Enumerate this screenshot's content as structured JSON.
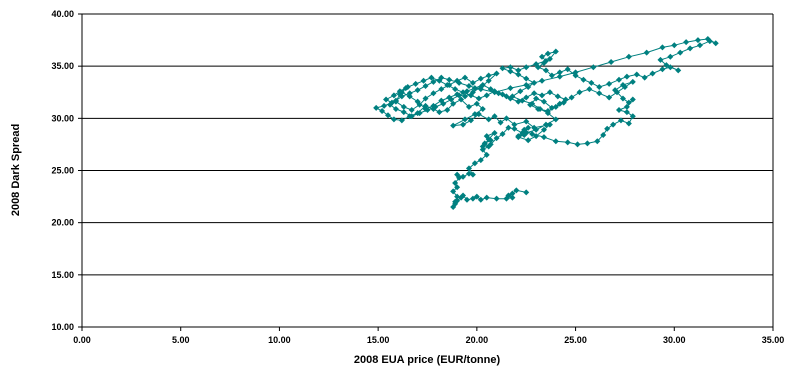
{
  "chart_data": {
    "type": "scatter",
    "title": "",
    "xlabel": "2008 EUA price (EUR/tonne)",
    "ylabel": "2008 Dark Spread",
    "xlim": [
      0,
      35
    ],
    "ylim": [
      10,
      40
    ],
    "x_ticks": [
      "0.00",
      "5.00",
      "10.00",
      "15.00",
      "20.00",
      "25.00",
      "30.00",
      "35.00"
    ],
    "y_ticks": [
      "10.00",
      "15.00",
      "20.00",
      "25.00",
      "30.00",
      "35.00",
      "40.00"
    ],
    "grid": "horizontal",
    "legend": "none",
    "color": "#008080",
    "marker": "diamond",
    "connected": true,
    "series": [
      {
        "values": [
          [
            22.5,
            22.9
          ],
          [
            22.0,
            23.1
          ],
          [
            21.8,
            22.8
          ],
          [
            21.6,
            22.6
          ],
          [
            21.8,
            22.4
          ],
          [
            21.5,
            22.3
          ],
          [
            21.0,
            22.3
          ],
          [
            20.5,
            22.4
          ],
          [
            20.2,
            22.2
          ],
          [
            20.0,
            22.5
          ],
          [
            19.8,
            22.3
          ],
          [
            19.5,
            22.2
          ],
          [
            19.3,
            22.6
          ],
          [
            19.2,
            22.4
          ],
          [
            19.0,
            22.1
          ],
          [
            18.9,
            21.8
          ],
          [
            18.8,
            21.5
          ],
          [
            18.9,
            22.0
          ],
          [
            19.0,
            22.5
          ],
          [
            18.8,
            23.0
          ],
          [
            19.0,
            23.4
          ],
          [
            18.9,
            23.8
          ],
          [
            19.1,
            24.3
          ],
          [
            19.0,
            24.6
          ],
          [
            19.3,
            24.4
          ],
          [
            19.6,
            24.7
          ],
          [
            19.8,
            24.6
          ],
          [
            19.6,
            25.2
          ],
          [
            19.9,
            25.7
          ],
          [
            20.2,
            26.0
          ],
          [
            20.5,
            26.5
          ],
          [
            20.3,
            27.0
          ],
          [
            20.6,
            27.3
          ],
          [
            20.4,
            27.6
          ],
          [
            20.7,
            27.9
          ],
          [
            20.5,
            28.3
          ],
          [
            20.9,
            28.6
          ],
          [
            20.6,
            28.0
          ],
          [
            20.3,
            27.3
          ],
          [
            20.7,
            27.5
          ],
          [
            21.0,
            28.1
          ],
          [
            21.3,
            28.5
          ],
          [
            21.6,
            29.1
          ],
          [
            21.9,
            29.0
          ],
          [
            22.3,
            28.6
          ],
          [
            22.6,
            29.1
          ],
          [
            22.4,
            28.4
          ],
          [
            22.1,
            28.2
          ],
          [
            22.6,
            27.9
          ],
          [
            23.0,
            28.3
          ],
          [
            23.4,
            28.9
          ],
          [
            23.7,
            29.4
          ],
          [
            22.9,
            29.1
          ],
          [
            22.5,
            29.7
          ],
          [
            21.9,
            29.4
          ],
          [
            21.5,
            30.0
          ],
          [
            21.2,
            29.6
          ],
          [
            20.9,
            30.2
          ],
          [
            20.6,
            29.9
          ],
          [
            20.1,
            30.4
          ],
          [
            19.7,
            29.8
          ],
          [
            19.3,
            29.4
          ],
          [
            18.8,
            29.3
          ],
          [
            19.4,
            29.9
          ],
          [
            19.9,
            30.4
          ],
          [
            20.3,
            30.9
          ],
          [
            20.0,
            31.4
          ],
          [
            19.6,
            31.1
          ],
          [
            19.2,
            31.8
          ],
          [
            18.8,
            31.4
          ],
          [
            18.5,
            30.8
          ],
          [
            18.1,
            30.6
          ],
          [
            17.8,
            30.9
          ],
          [
            17.4,
            31.2
          ],
          [
            17.0,
            30.5
          ],
          [
            16.6,
            30.2
          ],
          [
            16.2,
            29.8
          ],
          [
            15.8,
            29.9
          ],
          [
            15.5,
            30.3
          ],
          [
            15.2,
            30.7
          ],
          [
            14.9,
            31.0
          ],
          [
            15.3,
            31.2
          ],
          [
            15.7,
            31.5
          ],
          [
            15.4,
            31.8
          ],
          [
            15.8,
            32.2
          ],
          [
            16.1,
            32.6
          ],
          [
            16.4,
            32.9
          ],
          [
            16.1,
            32.3
          ],
          [
            15.9,
            31.6
          ],
          [
            16.3,
            31.1
          ],
          [
            16.7,
            30.8
          ],
          [
            17.1,
            31.3
          ],
          [
            17.4,
            31.9
          ],
          [
            17.8,
            32.4
          ],
          [
            18.2,
            32.8
          ],
          [
            18.6,
            33.2
          ],
          [
            19.0,
            33.6
          ],
          [
            19.4,
            33.9
          ],
          [
            19.8,
            33.4
          ],
          [
            20.2,
            33.8
          ],
          [
            20.6,
            34.1
          ],
          [
            21.0,
            34.3
          ],
          [
            20.6,
            33.6
          ],
          [
            20.2,
            33.0
          ],
          [
            19.8,
            32.5
          ],
          [
            19.4,
            32.1
          ],
          [
            19.0,
            32.3
          ],
          [
            18.6,
            32.0
          ],
          [
            18.2,
            31.7
          ],
          [
            17.8,
            31.2
          ],
          [
            17.4,
            30.9
          ],
          [
            17.0,
            31.6
          ],
          [
            16.6,
            32.1
          ],
          [
            16.2,
            32.5
          ],
          [
            16.5,
            33.0
          ],
          [
            16.9,
            33.3
          ],
          [
            17.3,
            33.6
          ],
          [
            17.7,
            33.9
          ],
          [
            18.1,
            33.6
          ],
          [
            18.5,
            33.2
          ],
          [
            18.9,
            32.8
          ],
          [
            19.3,
            32.5
          ],
          [
            19.7,
            32.2
          ],
          [
            20.1,
            31.9
          ],
          [
            20.5,
            32.2
          ],
          [
            20.9,
            32.6
          ],
          [
            21.3,
            32.3
          ],
          [
            21.7,
            31.9
          ],
          [
            22.1,
            31.6
          ],
          [
            22.5,
            32.0
          ],
          [
            22.9,
            32.4
          ],
          [
            23.3,
            32.2
          ],
          [
            23.7,
            32.5
          ],
          [
            24.1,
            32.1
          ],
          [
            24.5,
            31.8
          ],
          [
            24.2,
            31.4
          ],
          [
            23.8,
            31.0
          ],
          [
            23.4,
            31.6
          ],
          [
            23.0,
            31.9
          ],
          [
            22.7,
            31.3
          ],
          [
            23.1,
            30.9
          ],
          [
            23.6,
            30.7
          ],
          [
            24.0,
            31.1
          ],
          [
            24.4,
            31.5
          ],
          [
            24.8,
            32.0
          ],
          [
            25.2,
            32.5
          ],
          [
            25.7,
            32.8
          ],
          [
            26.2,
            32.4
          ],
          [
            26.7,
            32.0
          ],
          [
            27.1,
            32.5
          ],
          [
            27.5,
            33.0
          ],
          [
            27.9,
            33.5
          ],
          [
            27.4,
            33.2
          ],
          [
            27.0,
            32.7
          ],
          [
            27.4,
            31.9
          ],
          [
            27.7,
            31.5
          ],
          [
            27.9,
            31.8
          ],
          [
            27.6,
            31.1
          ],
          [
            27.2,
            30.8
          ],
          [
            27.6,
            30.6
          ],
          [
            27.9,
            30.2
          ],
          [
            27.7,
            29.5
          ],
          [
            27.3,
            29.8
          ],
          [
            26.9,
            29.4
          ],
          [
            26.6,
            29.0
          ],
          [
            26.4,
            28.4
          ],
          [
            26.1,
            27.8
          ],
          [
            25.6,
            27.6
          ],
          [
            25.1,
            27.5
          ],
          [
            24.6,
            27.7
          ],
          [
            24.0,
            27.8
          ],
          [
            23.4,
            28.2
          ],
          [
            22.8,
            28.5
          ],
          [
            22.4,
            28.9
          ],
          [
            22.1,
            28.3
          ],
          [
            22.5,
            28.6
          ],
          [
            23.0,
            28.9
          ],
          [
            23.5,
            29.4
          ],
          [
            24.0,
            29.9
          ],
          [
            23.6,
            30.5
          ],
          [
            23.2,
            30.9
          ],
          [
            22.8,
            31.4
          ],
          [
            22.3,
            31.7
          ],
          [
            21.8,
            32.1
          ],
          [
            22.2,
            32.6
          ],
          [
            22.6,
            33.0
          ],
          [
            22.9,
            33.4
          ],
          [
            22.5,
            33.8
          ],
          [
            22.1,
            34.2
          ],
          [
            21.7,
            34.5
          ],
          [
            21.3,
            34.8
          ],
          [
            21.7,
            34.9
          ],
          [
            22.1,
            34.6
          ],
          [
            22.5,
            34.9
          ],
          [
            23.0,
            35.2
          ],
          [
            23.5,
            35.5
          ],
          [
            23.3,
            35.9
          ],
          [
            23.6,
            36.2
          ],
          [
            24.0,
            36.4
          ],
          [
            23.7,
            35.7
          ],
          [
            23.4,
            35.3
          ],
          [
            23.1,
            34.9
          ],
          [
            23.5,
            34.6
          ],
          [
            23.8,
            34.1
          ],
          [
            24.2,
            34.4
          ],
          [
            24.6,
            34.7
          ],
          [
            25.0,
            34.1
          ],
          [
            25.4,
            33.7
          ],
          [
            25.8,
            33.4
          ],
          [
            26.2,
            33.0
          ],
          [
            26.7,
            33.3
          ],
          [
            27.2,
            33.7
          ],
          [
            27.6,
            34.0
          ],
          [
            28.1,
            34.2
          ],
          [
            28.5,
            33.9
          ],
          [
            28.9,
            34.3
          ],
          [
            29.4,
            34.7
          ],
          [
            29.8,
            34.9
          ],
          [
            30.2,
            34.6
          ],
          [
            29.6,
            35.1
          ],
          [
            29.3,
            35.6
          ],
          [
            29.8,
            35.9
          ],
          [
            30.3,
            36.3
          ],
          [
            30.8,
            36.7
          ],
          [
            31.3,
            37.0
          ],
          [
            31.8,
            37.4
          ],
          [
            32.1,
            37.2
          ],
          [
            31.7,
            37.6
          ],
          [
            31.2,
            37.5
          ],
          [
            30.6,
            37.3
          ],
          [
            30.0,
            37.0
          ],
          [
            29.4,
            36.8
          ],
          [
            28.6,
            36.3
          ],
          [
            27.7,
            35.9
          ],
          [
            26.8,
            35.4
          ],
          [
            25.9,
            34.9
          ],
          [
            25.0,
            34.4
          ],
          [
            24.2,
            34.0
          ],
          [
            23.3,
            33.6
          ],
          [
            22.5,
            33.2
          ],
          [
            21.7,
            32.9
          ],
          [
            20.9,
            32.5
          ],
          [
            20.2,
            32.8
          ],
          [
            19.6,
            33.1
          ],
          [
            19.1,
            33.4
          ],
          [
            18.6,
            33.7
          ],
          [
            18.2,
            33.9
          ],
          [
            17.8,
            33.5
          ],
          [
            17.4,
            33.1
          ],
          [
            17.0,
            32.7
          ],
          [
            16.6,
            32.4
          ],
          [
            16.2,
            32.1
          ],
          [
            15.9,
            31.7
          ],
          [
            15.6,
            31.3
          ],
          [
            15.9,
            30.9
          ],
          [
            16.3,
            30.6
          ],
          [
            16.7,
            30.2
          ],
          [
            17.1,
            30.5
          ],
          [
            17.5,
            30.8
          ],
          [
            17.9,
            31.1
          ],
          [
            18.3,
            31.4
          ],
          [
            18.7,
            31.8
          ],
          [
            19.1,
            32.2
          ],
          [
            19.5,
            32.6
          ],
          [
            19.9,
            32.9
          ],
          [
            20.3,
            33.2
          ],
          [
            20.7,
            32.8
          ],
          [
            21.1,
            32.4
          ],
          [
            21.5,
            32.1
          ]
        ]
      }
    ]
  }
}
